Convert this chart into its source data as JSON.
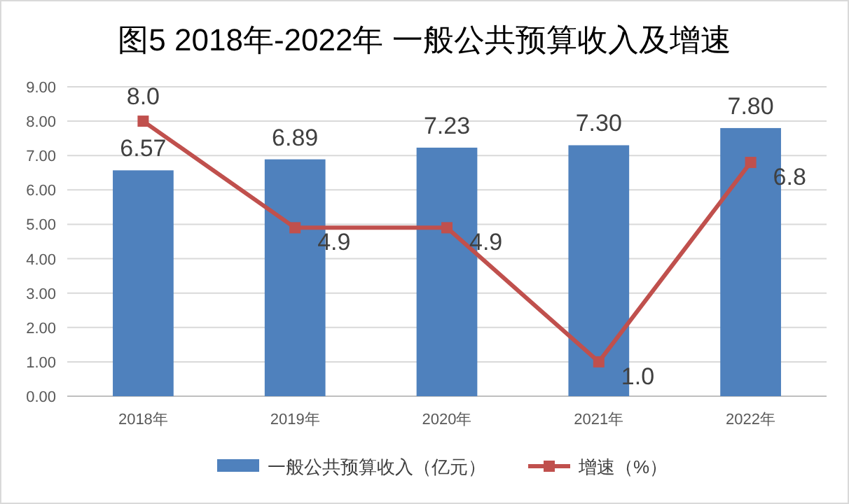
{
  "chart_data": {
    "type": "bar",
    "title": "图5 2018年-2022年 一般公共预算收入及增速",
    "categories": [
      "2018年",
      "2019年",
      "2020年",
      "2021年",
      "2022年"
    ],
    "series": [
      {
        "name": "一般公共预算收入（亿元）",
        "color": "#4f81bd",
        "values": [
          6.57,
          6.89,
          7.23,
          7.3,
          7.8
        ],
        "value_labels": [
          "6.57",
          "6.89",
          "7.23",
          "7.30",
          "7.80"
        ]
      },
      {
        "name": "增速（%）",
        "type": "line",
        "color": "#c0504d",
        "marker": "square",
        "values": [
          8.0,
          4.9,
          4.9,
          1.0,
          6.8
        ],
        "value_labels": [
          "8.0",
          "4.9",
          "4.9",
          "1.0",
          "6.8"
        ]
      }
    ],
    "ylim": [
      0,
      9
    ],
    "yticks": [
      {
        "value": 0,
        "label": "0.00"
      },
      {
        "value": 1,
        "label": "1.00"
      },
      {
        "value": 2,
        "label": "2.00"
      },
      {
        "value": 3,
        "label": "3.00"
      },
      {
        "value": 4,
        "label": "4.00"
      },
      {
        "value": 5,
        "label": "5.00"
      },
      {
        "value": 6,
        "label": "6.00"
      },
      {
        "value": 7,
        "label": "7.00"
      },
      {
        "value": 8,
        "label": "8.00"
      },
      {
        "value": 9,
        "label": "9.00"
      }
    ],
    "grid": "y",
    "legend": "bottom"
  }
}
